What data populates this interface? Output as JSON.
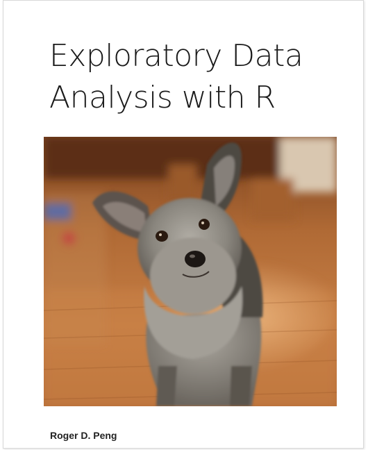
{
  "book": {
    "title_line1": "Exploratory Data",
    "title_line2": "Analysis with R",
    "author": "Roger D. Peng"
  },
  "cover_photo": {
    "subject-icon": "dog-photo",
    "colors": {
      "floor": "#b5692f",
      "floor_light": "#e2a56a",
      "fur": "#8d8a84",
      "fur_dark": "#4a4540",
      "background": "#6e3b1c"
    }
  }
}
